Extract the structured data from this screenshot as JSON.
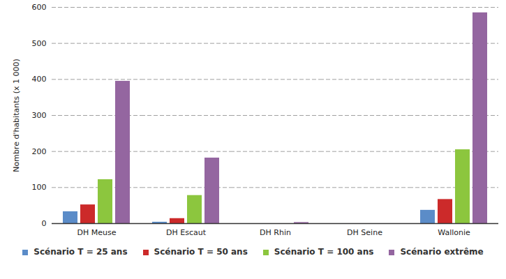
{
  "chart_data": {
    "type": "bar",
    "y_label": "Nombre d'habitants (x 1 000)",
    "categories": [
      "DH Meuse",
      "DH Escaut",
      "DH Rhin",
      "DH Seine",
      "Wallonie"
    ],
    "series": [
      {
        "name": "Scénario T = 25 ans",
        "color": "#5b8cc8",
        "values": [
          33,
          4,
          0,
          0,
          37
        ]
      },
      {
        "name": "Scénario T = 50 ans",
        "color": "#cc2a2a",
        "values": [
          52,
          14,
          0,
          0,
          67
        ]
      },
      {
        "name": "Scénario T = 100 ans",
        "color": "#8cc63e",
        "values": [
          122,
          78,
          0,
          0,
          205
        ]
      },
      {
        "name": "Scénario extrême",
        "color": "#9466a0",
        "values": [
          395,
          182,
          3,
          0,
          585
        ]
      }
    ],
    "ylim": [
      0,
      600
    ],
    "yticks": [
      0,
      100,
      200,
      300,
      400,
      500,
      600
    ],
    "grid": true,
    "legend": "bottom"
  }
}
